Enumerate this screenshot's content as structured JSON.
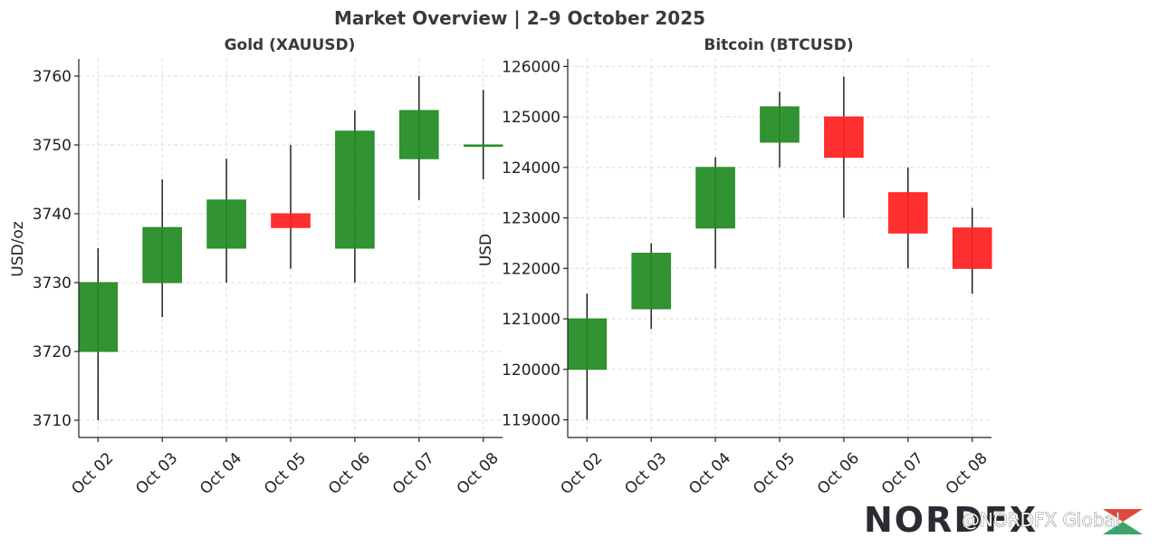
{
  "suptitle": "Market Overview | 2–9 October 2025",
  "watermark": {
    "logo_text": "NORDFX",
    "handle": "@NORDFX Global"
  },
  "colors": {
    "up": "#228b22",
    "down": "#ff2020",
    "wick": "#000000"
  },
  "chart_data": [
    {
      "type": "candlestick",
      "title": "Gold (XAUUSD)",
      "ylabel": "USD/oz",
      "xlabel": "",
      "ylim": [
        3707.5,
        3762.5
      ],
      "yticks": [
        3710,
        3720,
        3730,
        3740,
        3750,
        3760
      ],
      "grid": true,
      "categories": [
        "Oct 02",
        "Oct 03",
        "Oct 04",
        "Oct 05",
        "Oct 06",
        "Oct 07",
        "Oct 08"
      ],
      "ohlc": [
        {
          "open": 3720,
          "high": 3735,
          "low": 3710,
          "close": 3730
        },
        {
          "open": 3730,
          "high": 3745,
          "low": 3725,
          "close": 3738
        },
        {
          "open": 3735,
          "high": 3748,
          "low": 3730,
          "close": 3742
        },
        {
          "open": 3740,
          "high": 3750,
          "low": 3732,
          "close": 3738
        },
        {
          "open": 3735,
          "high": 3755,
          "low": 3730,
          "close": 3752
        },
        {
          "open": 3748,
          "high": 3760,
          "low": 3742,
          "close": 3755
        },
        {
          "open": 3750,
          "high": 3758,
          "low": 3745,
          "close": 3750
        }
      ]
    },
    {
      "type": "candlestick",
      "title": "Bitcoin (BTCUSD)",
      "ylabel": "USD",
      "xlabel": "",
      "ylim": [
        118650,
        126150
      ],
      "yticks": [
        119000,
        120000,
        121000,
        122000,
        123000,
        124000,
        125000,
        126000
      ],
      "grid": true,
      "categories": [
        "Oct 02",
        "Oct 03",
        "Oct 04",
        "Oct 05",
        "Oct 06",
        "Oct 07",
        "Oct 08"
      ],
      "ohlc": [
        {
          "open": 120000,
          "high": 121500,
          "low": 119000,
          "close": 121000
        },
        {
          "open": 121200,
          "high": 122500,
          "low": 120800,
          "close": 122300
        },
        {
          "open": 122800,
          "high": 124200,
          "low": 122000,
          "close": 124000
        },
        {
          "open": 124500,
          "high": 125500,
          "low": 124000,
          "close": 125200
        },
        {
          "open": 125000,
          "high": 125800,
          "low": 123000,
          "close": 124200
        },
        {
          "open": 123500,
          "high": 124000,
          "low": 122000,
          "close": 122700
        },
        {
          "open": 122800,
          "high": 123200,
          "low": 121500,
          "close": 122000
        }
      ]
    }
  ]
}
